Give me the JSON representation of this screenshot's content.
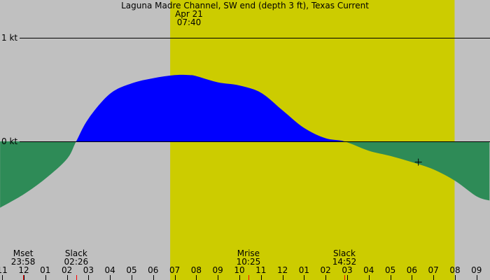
{
  "chart_data": {
    "type": "area",
    "title": "Laguna Madre Channel, SW end (depth 3 ft), Texas Current",
    "date_label": "Apr 21",
    "time_label": "07:40",
    "ylabel": "kt",
    "y_ticks": [
      {
        "label": "1 kt",
        "value": 1
      },
      {
        "label": "0 kt",
        "value": 0
      }
    ],
    "ylim": [
      -0.7,
      1.35
    ],
    "x_tick_labels": [
      "11",
      "12",
      "01",
      "02",
      "03",
      "04",
      "05",
      "06",
      "07",
      "08",
      "09",
      "10",
      "11",
      "12",
      "01",
      "02",
      "03",
      "04",
      "05",
      "06",
      "07",
      "08",
      "09"
    ],
    "x_hours": [
      -1,
      0,
      1,
      2,
      3,
      4,
      5,
      6,
      7,
      8,
      9,
      10,
      11,
      12,
      13,
      14,
      15,
      16,
      17,
      18,
      19,
      20,
      21
    ],
    "daylight": {
      "start_hour": 7.0,
      "end_hour": 19.9
    },
    "series": [
      {
        "name": "current speed (kt)",
        "x_hours": [
          -1.1,
          0,
          1,
          2,
          2.43,
          3,
          4,
          5,
          6,
          7,
          7.67,
          8,
          9,
          10,
          11,
          12,
          13,
          14,
          14.87,
          16,
          17,
          18,
          19,
          20,
          21,
          21.6
        ],
        "values": [
          -0.64,
          -0.51,
          -0.36,
          -0.17,
          0.0,
          0.22,
          0.46,
          0.56,
          0.61,
          0.64,
          0.64,
          0.63,
          0.57,
          0.54,
          0.47,
          0.3,
          0.13,
          0.03,
          0.0,
          -0.09,
          -0.14,
          -0.2,
          -0.27,
          -0.38,
          -0.53,
          -0.57
        ]
      }
    ],
    "marker": {
      "hour": 18.3,
      "value": -0.2,
      "symbol": "+"
    },
    "events": [
      {
        "name": "Mset",
        "time": "23:58",
        "hour": -0.03
      },
      {
        "name": "Slack",
        "time": "02:26",
        "hour": 2.43
      },
      {
        "name": "Mrise",
        "time": "10:25",
        "hour": 10.42
      },
      {
        "name": "Slack",
        "time": "14:52",
        "hour": 14.87
      }
    ],
    "colors": {
      "background": "#c0c0c0",
      "daylight": "#cccc00",
      "flood": "#0000ff",
      "ebb": "#2e8b57",
      "event_tick": "#ff0000"
    }
  }
}
